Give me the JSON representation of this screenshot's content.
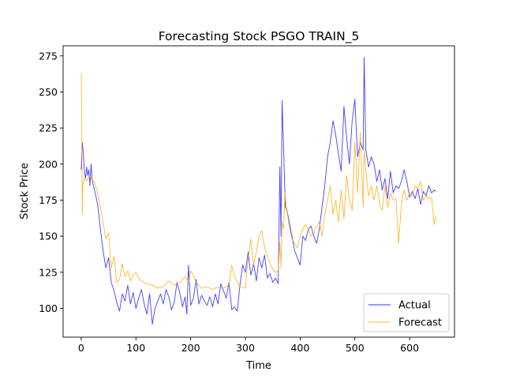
{
  "chart_data": {
    "type": "line",
    "title": "Forecasting Stock PSGO TRAIN_5",
    "xlabel": "Time",
    "ylabel": "Stock Price",
    "xlim": [
      -33,
      682
    ],
    "ylim": [
      80,
      282
    ],
    "x_ticks": [
      0,
      100,
      200,
      300,
      400,
      500,
      600
    ],
    "y_ticks": [
      100,
      125,
      150,
      175,
      200,
      225,
      250,
      275
    ],
    "grid": false,
    "legend_position": "bottom-right",
    "series": [
      {
        "name": "Actual",
        "color": "#0000ff",
        "x": [
          0,
          2,
          4,
          6,
          8,
          10,
          12,
          14,
          16,
          18,
          20,
          25,
          30,
          35,
          40,
          45,
          50,
          55,
          60,
          65,
          70,
          75,
          80,
          85,
          90,
          95,
          100,
          105,
          110,
          115,
          120,
          125,
          130,
          135,
          140,
          145,
          150,
          155,
          160,
          165,
          170,
          175,
          180,
          185,
          190,
          193,
          196,
          200,
          205,
          210,
          215,
          220,
          225,
          230,
          235,
          240,
          245,
          250,
          255,
          260,
          265,
          270,
          275,
          280,
          285,
          290,
          295,
          300,
          305,
          310,
          315,
          320,
          325,
          330,
          335,
          340,
          345,
          350,
          355,
          360,
          363,
          365,
          367,
          370,
          373,
          376,
          380,
          385,
          390,
          395,
          400,
          405,
          410,
          415,
          420,
          425,
          430,
          435,
          440,
          445,
          450,
          455,
          460,
          465,
          470,
          475,
          480,
          485,
          490,
          495,
          500,
          505,
          510,
          515,
          517,
          520,
          525,
          530,
          535,
          540,
          545,
          550,
          555,
          560,
          565,
          570,
          575,
          580,
          585,
          590,
          595,
          600,
          605,
          610,
          615,
          620,
          625,
          630,
          635,
          640,
          645,
          648
        ],
        "values": [
          196,
          215,
          207,
          194,
          190,
          198,
          192,
          196,
          185,
          200,
          189,
          181,
          172,
          155,
          140,
          128,
          135,
          118,
          112,
          104,
          98,
          110,
          105,
          116,
          103,
          111,
          100,
          107,
          113,
          103,
          96,
          110,
          89,
          100,
          105,
          110,
          103,
          113,
          108,
          99,
          104,
          118,
          111,
          101,
          108,
          96,
          130,
          102,
          107,
          120,
          103,
          109,
          105,
          102,
          108,
          101,
          110,
          103,
          117,
          112,
          107,
          118,
          99,
          101,
          98,
          116,
          130,
          125,
          139,
          123,
          131,
          119,
          135,
          128,
          137,
          121,
          124,
          118,
          121,
          117,
          198,
          150,
          244,
          208,
          170,
          168,
          160,
          150,
          140,
          135,
          130,
          150,
          147,
          155,
          157,
          150,
          145,
          155,
          170,
          185,
          205,
          215,
          230,
          220,
          207,
          195,
          240,
          218,
          200,
          230,
          245,
          205,
          215,
          210,
          274,
          210,
          198,
          205,
          200,
          188,
          196,
          182,
          190,
          176,
          195,
          180,
          185,
          183,
          188,
          196,
          188,
          177,
          181,
          176,
          183,
          172,
          181,
          178,
          185,
          180,
          182,
          181
        ]
      },
      {
        "name": "Forecast",
        "color": "#ffa500",
        "x": [
          0,
          1,
          2,
          3,
          5,
          10,
          15,
          20,
          25,
          30,
          35,
          40,
          45,
          50,
          55,
          60,
          65,
          70,
          75,
          80,
          85,
          90,
          95,
          100,
          105,
          110,
          115,
          120,
          130,
          140,
          150,
          160,
          170,
          180,
          190,
          197,
          200,
          205,
          210,
          220,
          230,
          240,
          250,
          260,
          270,
          275,
          280,
          290,
          300,
          305,
          310,
          315,
          320,
          325,
          330,
          335,
          340,
          345,
          350,
          355,
          360,
          363,
          365,
          367,
          370,
          372,
          375,
          380,
          385,
          390,
          395,
          400,
          405,
          410,
          415,
          420,
          425,
          430,
          435,
          440,
          445,
          450,
          455,
          460,
          465,
          470,
          475,
          480,
          485,
          490,
          495,
          500,
          505,
          510,
          515,
          517,
          520,
          525,
          530,
          535,
          540,
          545,
          550,
          555,
          560,
          565,
          570,
          575,
          580,
          585,
          590,
          595,
          600,
          605,
          610,
          615,
          620,
          625,
          630,
          635,
          640,
          645,
          648
        ],
        "values": [
          263,
          230,
          165,
          185,
          190,
          188,
          192,
          189,
          187,
          180,
          170,
          160,
          148,
          152,
          128,
          136,
          118,
          120,
          131,
          122,
          126,
          119,
          123,
          125,
          121,
          119,
          118,
          117,
          116,
          114,
          115,
          119,
          116,
          118,
          122,
          118,
          126,
          123,
          118,
          114,
          115,
          113,
          115,
          114,
          116,
          130,
          122,
          115,
          114,
          135,
          148,
          130,
          139,
          150,
          154,
          142,
          136,
          131,
          127,
          125,
          126,
          146,
          128,
          160,
          155,
          180,
          170,
          157,
          148,
          145,
          142,
          150,
          155,
          158,
          155,
          150,
          152,
          157,
          160,
          150,
          165,
          175,
          185,
          165,
          175,
          160,
          182,
          162,
          192,
          175,
          168,
          215,
          180,
          222,
          170,
          210,
          195,
          178,
          185,
          175,
          185,
          172,
          168,
          185,
          170,
          180,
          175,
          176,
          145,
          172,
          182,
          175,
          180,
          178,
          185,
          183,
          188,
          175,
          178,
          176,
          177,
          158,
          164
        ]
      }
    ]
  }
}
